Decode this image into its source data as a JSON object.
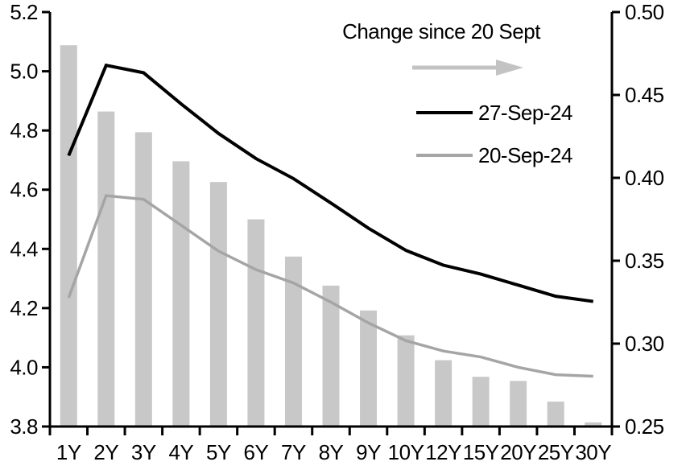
{
  "chart_data": {
    "type": "bar+line",
    "title": "",
    "xlabel": "",
    "ylabel_left": "",
    "ylabel_right": "",
    "grid": false,
    "categories": [
      "1Y",
      "2Y",
      "3Y",
      "4Y",
      "5Y",
      "6Y",
      "7Y",
      "8Y",
      "9Y",
      "10Y",
      "12Y",
      "15Y",
      "20Y",
      "25Y",
      "30Y"
    ],
    "left_axis": {
      "min": 3.8,
      "max": 5.2,
      "tick_values": [
        3.8,
        4.0,
        4.2,
        4.4,
        4.6,
        4.8,
        5.0,
        5.2
      ],
      "tick_labels": [
        "3.8",
        "4.0",
        "4.2",
        "4.4",
        "4.6",
        "4.8",
        "5.0",
        "5.2"
      ]
    },
    "right_axis": {
      "min": 0.25,
      "max": 0.5,
      "tick_values": [
        0.25,
        0.3,
        0.35,
        0.4,
        0.45,
        0.5
      ],
      "tick_labels": [
        "0.25",
        "0.30",
        "0.35",
        "0.40",
        "0.45",
        "0.50"
      ]
    },
    "series": [
      {
        "name": "Change since 20 Sept",
        "type": "bar",
        "axis": "right",
        "color": "#c8c8c8",
        "values": [
          0.48,
          0.44,
          0.4275,
          0.41,
          0.3975,
          0.375,
          0.3525,
          0.335,
          0.32,
          0.305,
          0.29,
          0.28,
          0.2775,
          0.265,
          0.2525
        ]
      },
      {
        "name": "27-Sep-24",
        "type": "line",
        "axis": "left",
        "color": "#000000",
        "values": [
          4.715,
          5.02,
          4.995,
          4.89,
          4.79,
          4.705,
          4.6375,
          4.555,
          4.47,
          4.395,
          4.345,
          4.315,
          4.2775,
          4.24,
          4.2225
        ]
      },
      {
        "name": "20-Sep-24",
        "type": "line",
        "axis": "left",
        "color": "#a5a5a5",
        "values": [
          4.235,
          4.58,
          4.5675,
          4.48,
          4.3925,
          4.33,
          4.285,
          4.22,
          4.15,
          4.09,
          4.055,
          4.035,
          4.0,
          3.975,
          3.97
        ]
      }
    ],
    "legend": {
      "title": "Change since 20 Sept",
      "arrow_icon": "right-arrow",
      "arrow_color": "#c3c3c3",
      "position": "top-right",
      "items": [
        {
          "label": "27-Sep-24",
          "color": "#000000"
        },
        {
          "label": "20-Sep-24",
          "color": "#a5a5a5"
        }
      ]
    },
    "axis_color": "#000000"
  }
}
